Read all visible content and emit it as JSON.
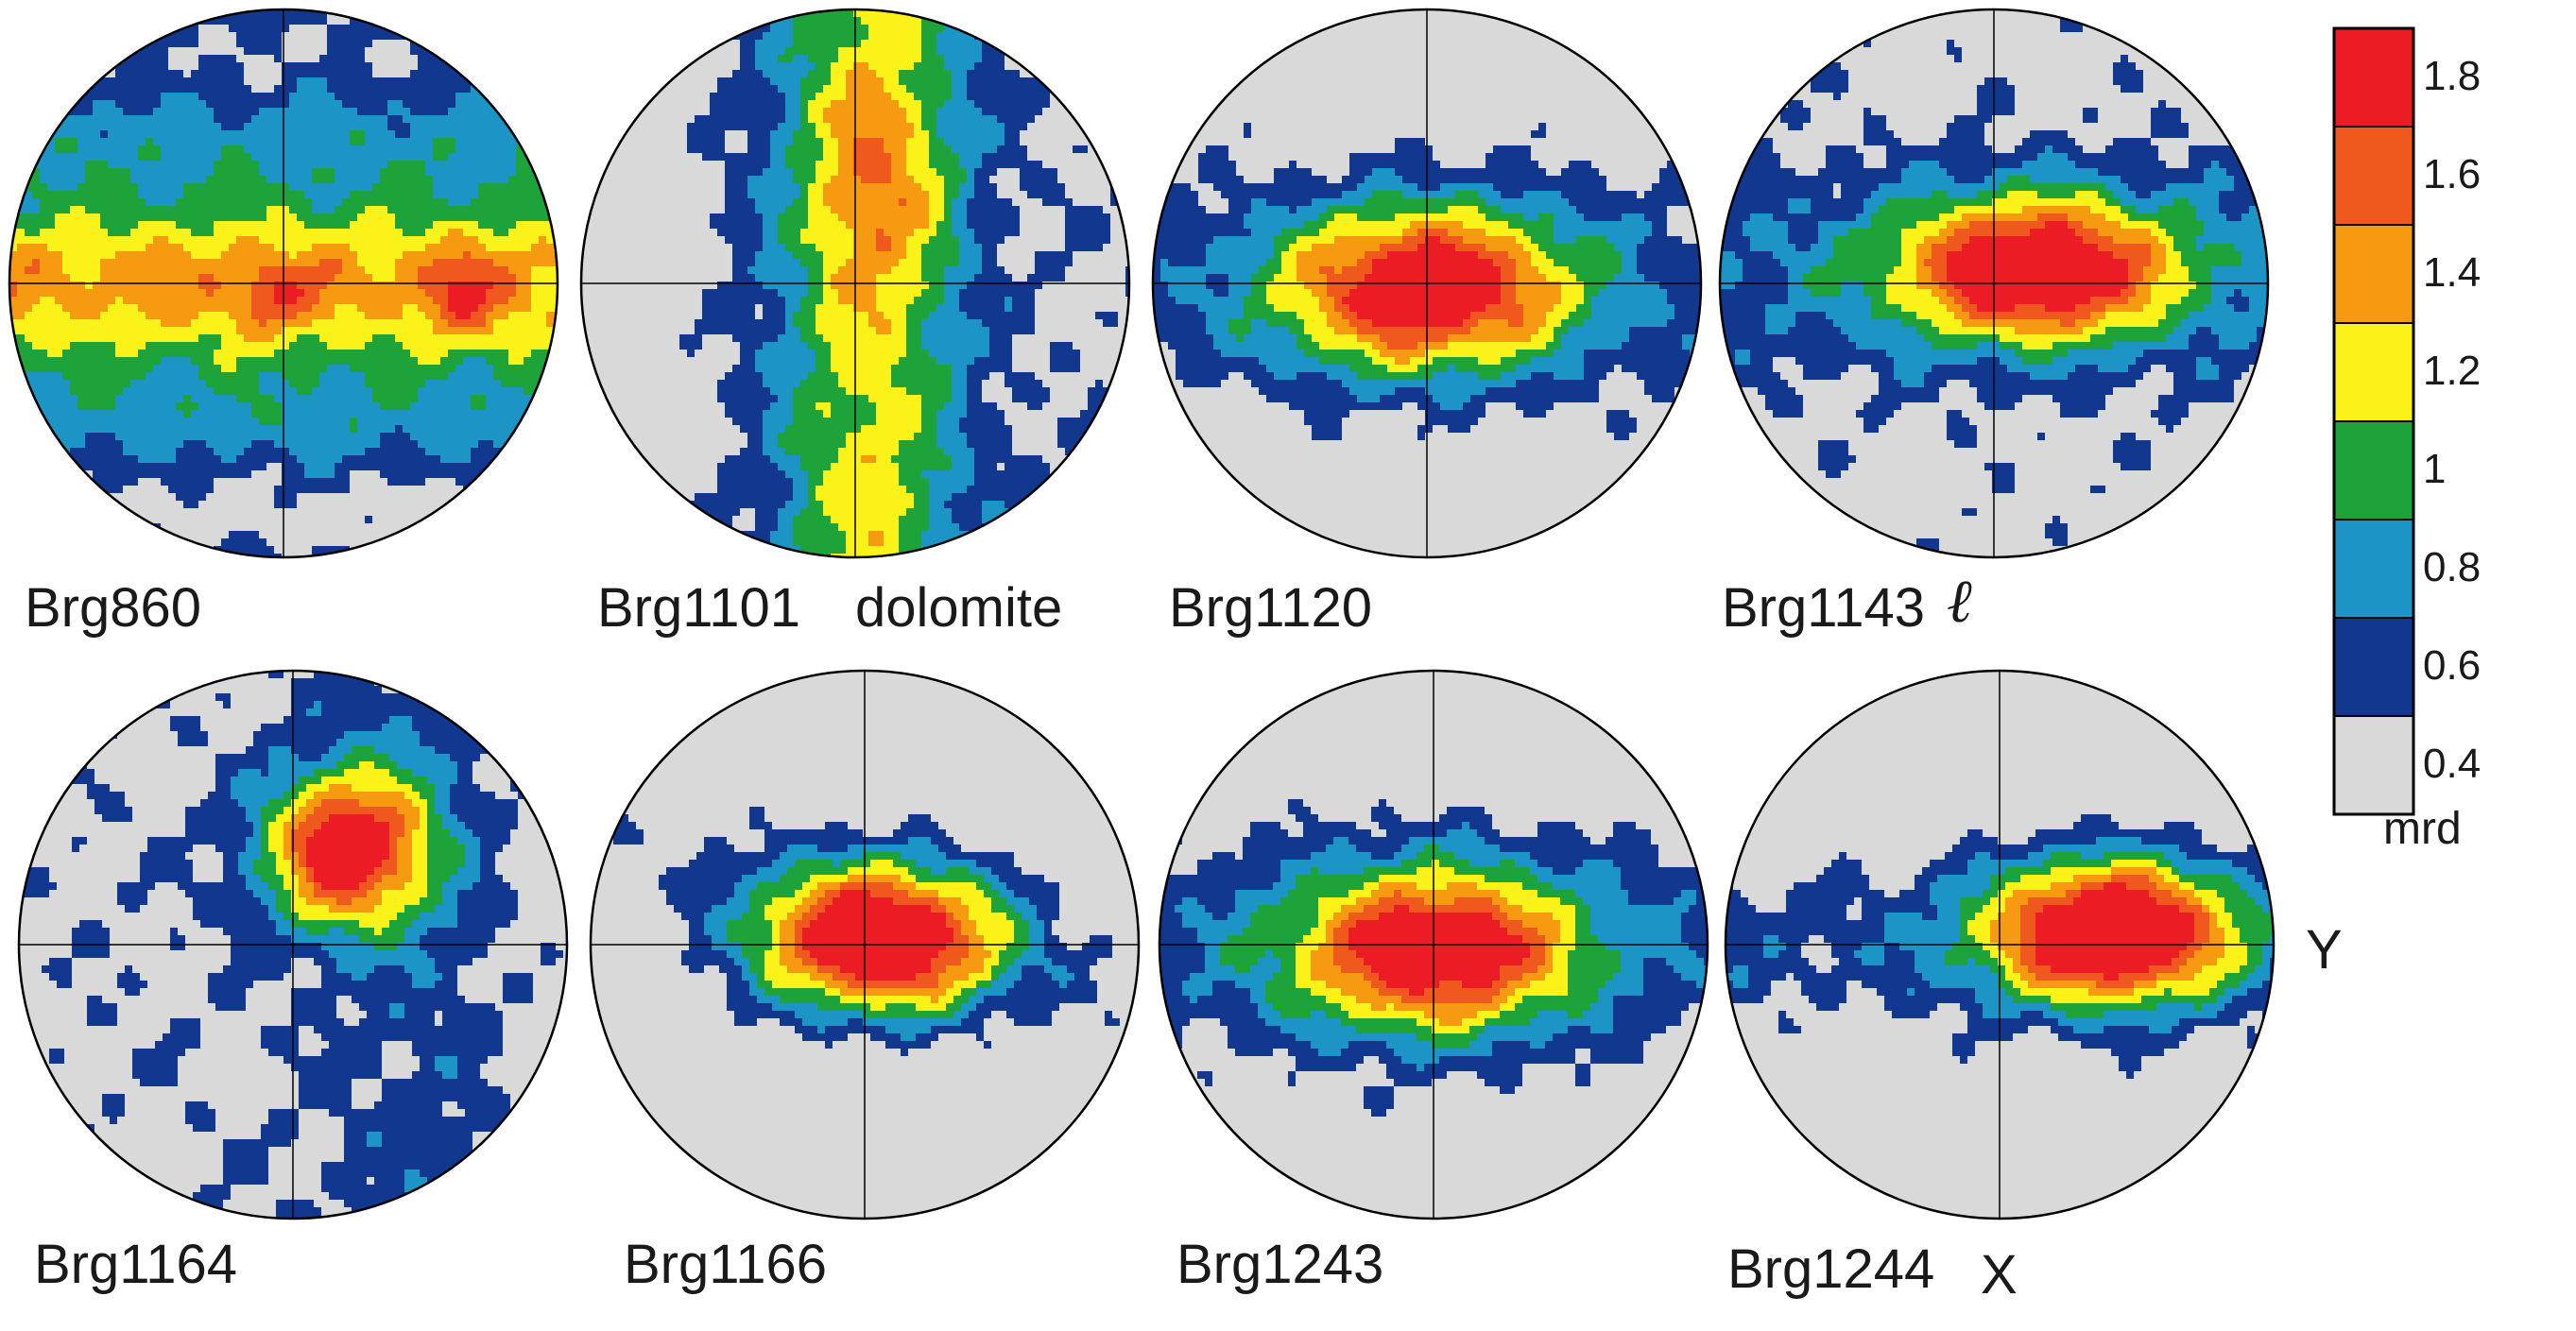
{
  "chart_data": {
    "type": "heatmap",
    "description_units": "mrd",
    "colorbar": {
      "unit": "mrd",
      "levels": [
        0.4,
        0.6,
        0.8,
        1,
        1.2,
        1.4,
        1.6,
        1.8
      ],
      "tick_labels": [
        "1.8",
        "1.6",
        "1.4",
        "1.2",
        "1",
        "0.8",
        "0.6",
        "0.4"
      ],
      "colors": [
        "#d9d9d9",
        "#12378f",
        "#1c95c6",
        "#1ea33a",
        "#fbf219",
        "#f69a12",
        "#f0591d",
        "#ec1c24"
      ]
    },
    "axis_labels": {
      "horizontal": "Y",
      "vertical": "X",
      "lineation_symbol": "ℓ"
    },
    "panels": [
      {
        "label": "Brg860",
        "pattern": "girdle"
      },
      {
        "label": "Brg1101",
        "sublabel": "dolomite",
        "pattern": "vertical"
      },
      {
        "label": "Brg1120",
        "pattern": "center"
      },
      {
        "label": "Brg1143",
        "pattern": "center-high"
      },
      {
        "label": "Brg1164",
        "pattern": "offset"
      },
      {
        "label": "Brg1166",
        "pattern": "strong"
      },
      {
        "label": "Brg1243",
        "pattern": "center"
      },
      {
        "label": "Brg1244",
        "pattern": "right"
      }
    ]
  }
}
